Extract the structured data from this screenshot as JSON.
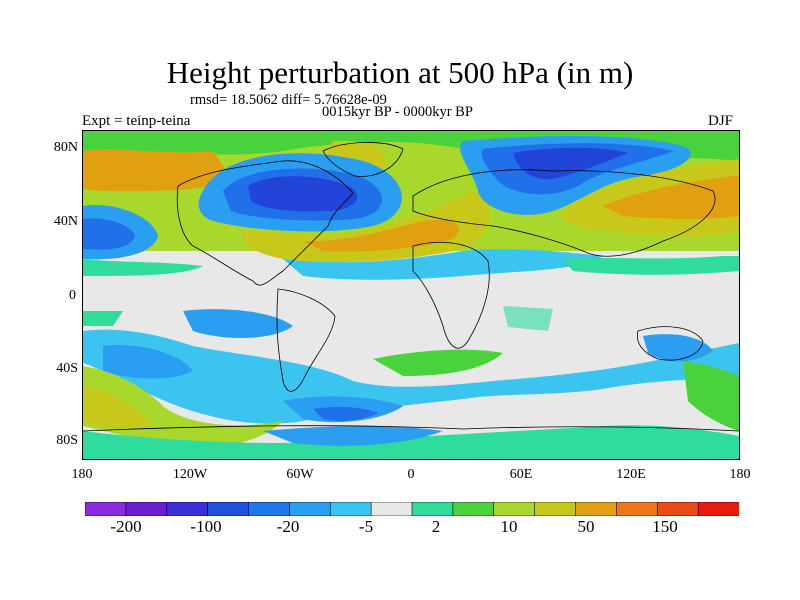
{
  "title": "Height perturbation at 500 hPa (in m)",
  "subtitle_stats": "rmsd= 18.5062 diff= 5.76628e-09",
  "subtitle_period": "0015kyr BP - 0000kyr BP",
  "left_label": "Expt = teinp-teina",
  "right_label": "DJF",
  "y_axis_labels": [
    "80N",
    "40N",
    "0",
    "40S",
    "80S"
  ],
  "x_axis_labels": [
    "180",
    "120W",
    "60W",
    "0",
    "60E",
    "120E",
    "180"
  ],
  "colorbar": {
    "labels": [
      "-200",
      "-100",
      "-20",
      "-5",
      "2",
      "10",
      "50",
      "150"
    ],
    "colors": [
      "#8a2be2",
      "#6a1fd0",
      "#3c2ed8",
      "#2050e0",
      "#1f78e8",
      "#2a9ef0",
      "#3cc4f0",
      "#e8e8e8",
      "#2fdc9c",
      "#4ad23c",
      "#a8d82c",
      "#c8c81a",
      "#e0a010",
      "#e87818",
      "#ec4c14",
      "#e81c0c"
    ],
    "neutral_color": "#e8e8e8"
  },
  "colors": {
    "deep_blue": "#2244d8",
    "blue": "#2070ea",
    "light_blue": "#2a9ef0",
    "cyan": "#3cc4f0",
    "neutral": "#e8e8e8",
    "mint": "#2fdc9c",
    "green": "#4ad23c",
    "yellow_green": "#a8d82c",
    "olive": "#c8c81a",
    "orange": "#e0a010"
  }
}
